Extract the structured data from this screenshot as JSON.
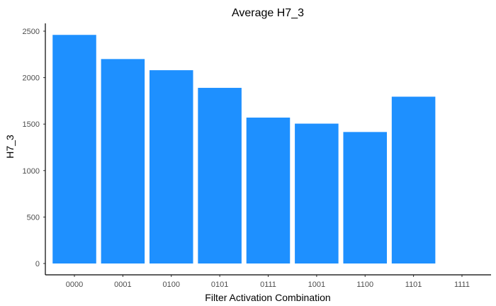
{
  "chart_data": {
    "type": "bar",
    "title": "Average H7_3",
    "xlabel": "Filter Activation Combination",
    "ylabel": "H7_3",
    "categories": [
      "0000",
      "0001",
      "0100",
      "0101",
      "0111",
      "1001",
      "1100",
      "1101",
      "1111"
    ],
    "values": [
      2460,
      2200,
      2080,
      1890,
      1570,
      1505,
      1415,
      1795,
      0
    ],
    "ylim": [
      0,
      2600
    ],
    "yticks": [
      0,
      500,
      1000,
      1500,
      2000,
      2500
    ],
    "grid": false,
    "legend": "none",
    "bar_color": "#1E90FF",
    "axis_color": "#000000"
  }
}
